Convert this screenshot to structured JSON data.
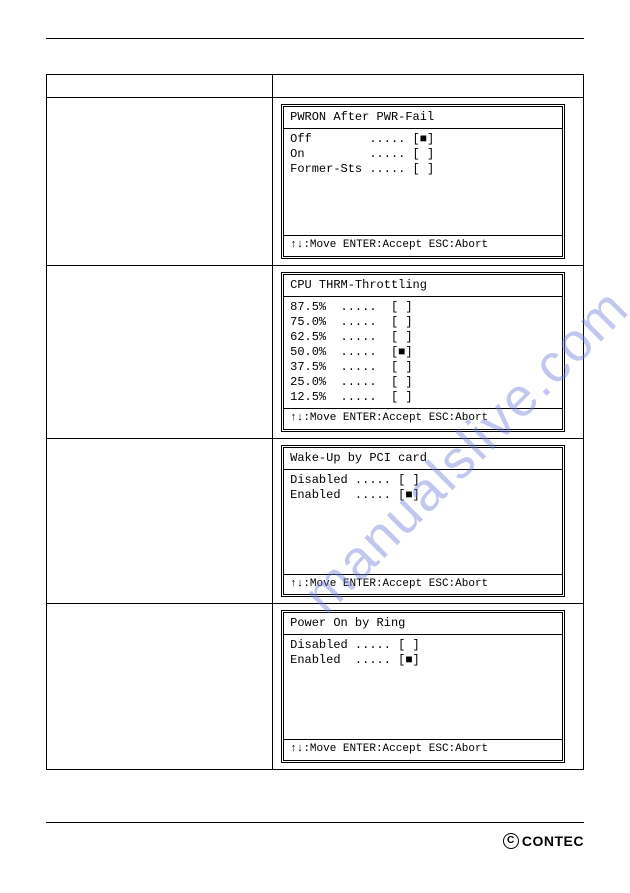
{
  "watermark": {
    "text": "manualslive.com",
    "color": "#6D7CDB"
  },
  "footer": {
    "brand": "CONTEC"
  },
  "panels": [
    {
      "id": "pwron",
      "title": "PWRON After PWR-Fail",
      "options": [
        {
          "label": "Off",
          "dots": ".....",
          "mark": "[■]"
        },
        {
          "label": "On",
          "dots": ".....",
          "mark": "[ ]"
        },
        {
          "label": "Former-Sts",
          "dots": ".....",
          "mark": "[ ]"
        }
      ],
      "footer": "↑↓:Move ENTER:Accept ESC:Abort"
    },
    {
      "id": "thrm",
      "title": "CPU THRM-Throttling",
      "options": [
        {
          "label": "87.5%",
          "dots": ".....",
          "mark": "[ ]"
        },
        {
          "label": "75.0%",
          "dots": ".....",
          "mark": "[ ]"
        },
        {
          "label": "62.5%",
          "dots": ".....",
          "mark": "[ ]"
        },
        {
          "label": "50.0%",
          "dots": ".....",
          "mark": "[■]"
        },
        {
          "label": "37.5%",
          "dots": ".....",
          "mark": "[ ]"
        },
        {
          "label": "25.0%",
          "dots": ".....",
          "mark": "[ ]"
        },
        {
          "label": "12.5%",
          "dots": ".....",
          "mark": "[ ]"
        }
      ],
      "footer": "↑↓:Move ENTER:Accept ESC:Abort"
    },
    {
      "id": "wake-pci",
      "title": "Wake-Up by PCI card",
      "options": [
        {
          "label": "Disabled",
          "dots": ".....",
          "mark": "[ ]"
        },
        {
          "label": "Enabled",
          "dots": ".....",
          "mark": "[■]"
        }
      ],
      "footer": "↑↓:Move ENTER:Accept ESC:Abort"
    },
    {
      "id": "ring",
      "title": "Power On by Ring",
      "options": [
        {
          "label": "Disabled",
          "dots": ".....",
          "mark": "[ ]"
        },
        {
          "label": "Enabled",
          "dots": ".....",
          "mark": "[■]"
        }
      ],
      "footer": "↑↓:Move ENTER:Accept ESC:Abort"
    }
  ],
  "style": {
    "page_bg": "#ffffff",
    "text_color": "#000000",
    "watermark_opacity": 0.42,
    "font_family_mono": "Courier New",
    "font_family_sans": "Arial",
    "label_col_width_ch": 10,
    "dots_col_width_ch": 5
  },
  "render": {
    "body": {
      "pwron": "Off        ..... [■]\nOn         ..... [ ]\nFormer-Sts ..... [ ]",
      "thrm": "87.5%  .....  [ ]\n75.0%  .....  [ ]\n62.5%  .....  [ ]\n50.0%  .....  [■]\n37.5%  .....  [ ]\n25.0%  .....  [ ]\n12.5%  .....  [ ]",
      "wake-pci": "Disabled ..... [ ]\nEnabled  ..... [■]",
      "ring": "Disabled ..... [ ]\nEnabled  ..... [■]"
    }
  }
}
